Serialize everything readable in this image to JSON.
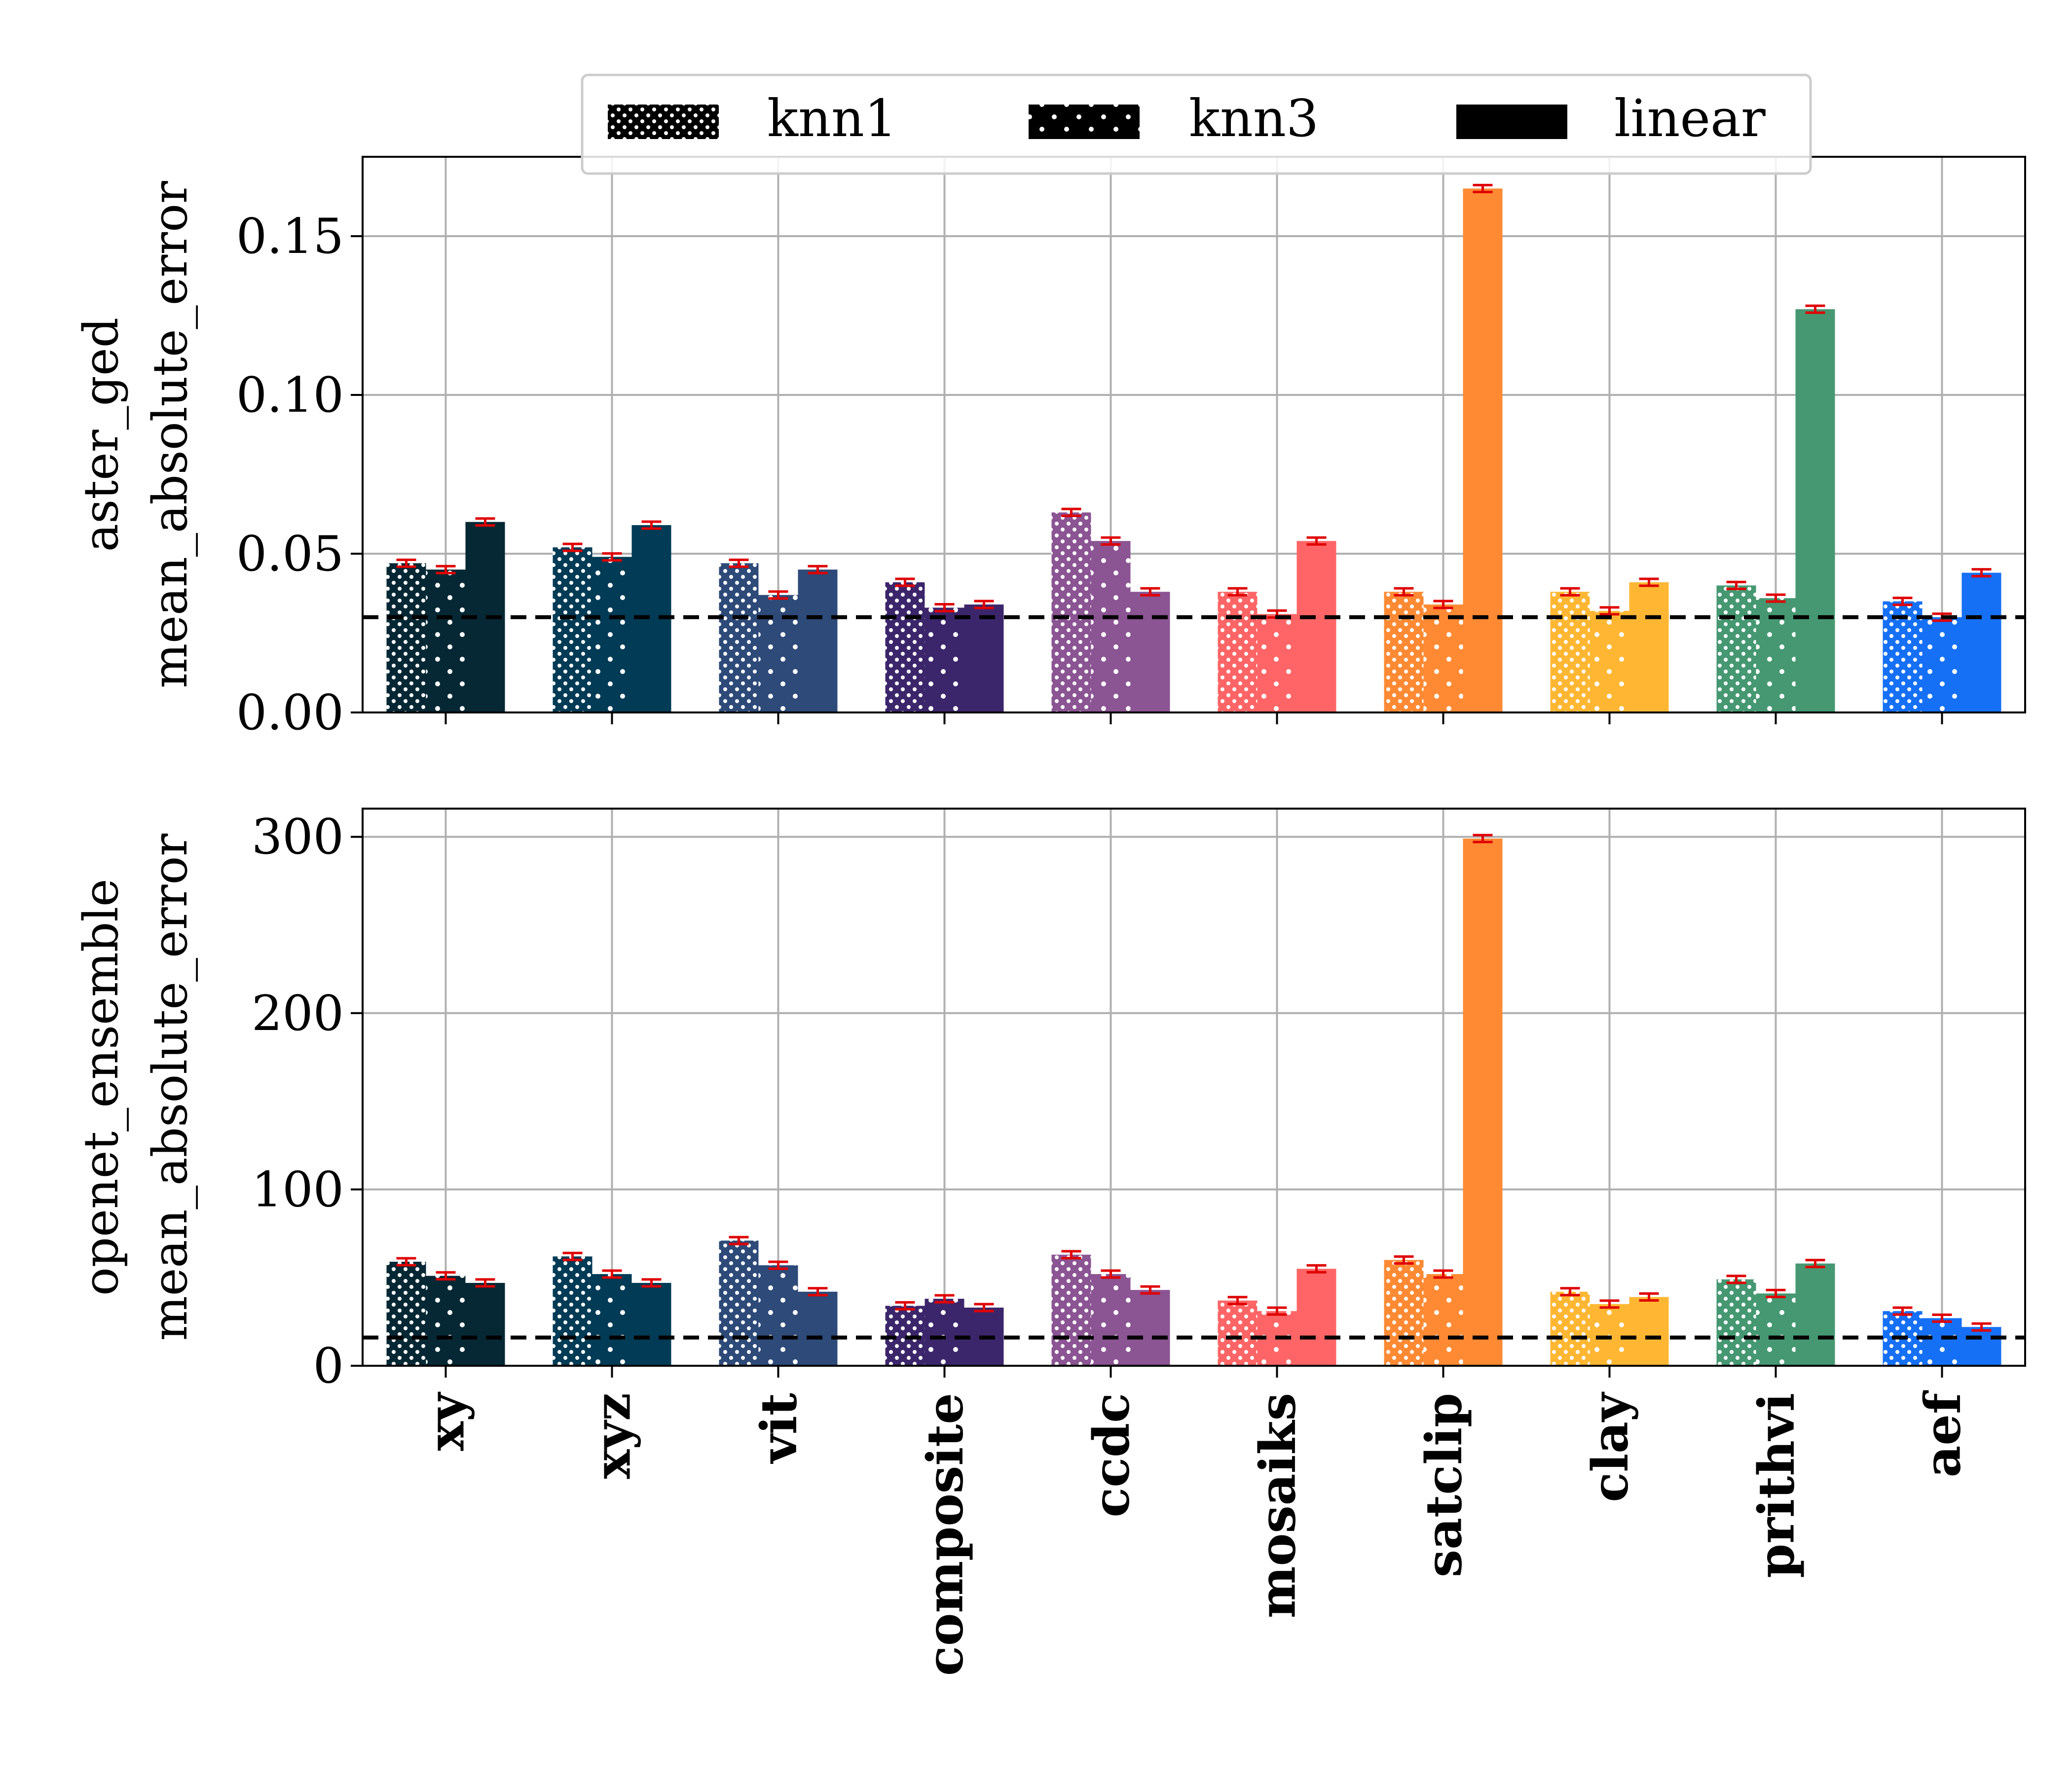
{
  "chart_data": [
    {
      "type": "bar",
      "ylabel_lines": [
        "aster_ged",
        "mean_absolute_error"
      ],
      "ylim": [
        0,
        0.175
      ],
      "yticks": [
        0,
        0.05,
        0.1,
        0.15
      ],
      "ytick_labels": [
        "0.00",
        "0.05",
        "0.10",
        "0.15"
      ],
      "baseline": 0.03,
      "categories": [
        "xy",
        "xyz",
        "vit",
        "composite",
        "ccdc",
        "mosaiks",
        "satclip",
        "clay",
        "prithvi",
        "aef"
      ],
      "series": [
        {
          "name": "knn1",
          "values": [
            0.047,
            0.052,
            0.047,
            0.041,
            0.063,
            0.038,
            0.038,
            0.038,
            0.04,
            0.035
          ]
        },
        {
          "name": "knn3",
          "values": [
            0.045,
            0.049,
            0.037,
            0.033,
            0.054,
            0.031,
            0.034,
            0.032,
            0.036,
            0.03
          ]
        },
        {
          "name": "linear",
          "values": [
            0.06,
            0.059,
            0.045,
            0.034,
            0.038,
            0.054,
            0.165,
            0.041,
            0.127,
            0.044
          ]
        }
      ],
      "grid": true
    },
    {
      "type": "bar",
      "ylabel_lines": [
        "openet_ensemble",
        "mean_absolute_error"
      ],
      "ylim": [
        0,
        316
      ],
      "yticks": [
        0,
        100,
        200,
        300
      ],
      "ytick_labels": [
        "0",
        "100",
        "200",
        "300"
      ],
      "baseline": 16,
      "categories": [
        "xy",
        "xyz",
        "vit",
        "composite",
        "ccdc",
        "mosaiks",
        "satclip",
        "clay",
        "prithvi",
        "aef"
      ],
      "series": [
        {
          "name": "knn1",
          "values": [
            59,
            62,
            71,
            34,
            63,
            37,
            60,
            42,
            49,
            31
          ]
        },
        {
          "name": "knn3",
          "values": [
            51,
            52,
            57,
            38,
            52,
            31,
            52,
            35,
            41,
            27
          ]
        },
        {
          "name": "linear",
          "values": [
            47,
            47,
            42,
            33,
            43,
            55,
            299,
            39,
            58,
            22
          ]
        }
      ],
      "grid": true
    }
  ],
  "legend": {
    "placement": "top",
    "items": [
      {
        "label": "knn1",
        "pattern": "dense-dots"
      },
      {
        "label": "knn3",
        "pattern": "sparse-dots"
      },
      {
        "label": "linear",
        "pattern": "solid"
      }
    ]
  },
  "colors": {
    "categories": [
      "#062835",
      "#013b55",
      "#2d4a78",
      "#3c266b",
      "#8b5493",
      "#ff6566",
      "#ff8a33",
      "#ffb733",
      "#459872",
      "#1570f6"
    ],
    "error_bar": "#e00000",
    "baseline": "#000000",
    "grid": "#b0b0b0"
  }
}
